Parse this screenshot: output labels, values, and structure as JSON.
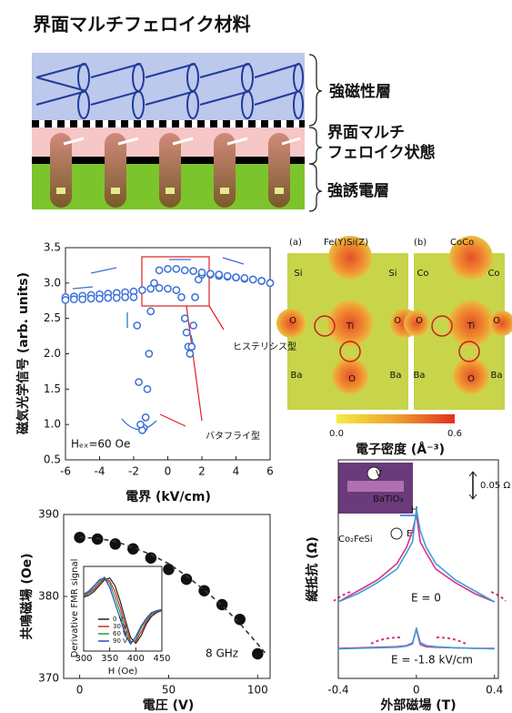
{
  "schematic": {
    "title": "界面マルチフェロイク材料",
    "labels": [
      "強磁性層",
      "界面マルチ",
      "フェロイク状態",
      "強誘電層"
    ]
  },
  "density_map": {
    "panels": [
      {
        "tag": "(a)",
        "title": "Fe(Y)Si(Z)",
        "atoms": [
          "Si",
          "Si",
          "O",
          "Ti",
          "O",
          "Ba",
          "O",
          "Ba"
        ]
      },
      {
        "tag": "(b)",
        "title": "CoCo",
        "atoms": [
          "Co",
          "Co",
          "O",
          "Ti",
          "O",
          "Ba",
          "O",
          "Ba"
        ]
      }
    ],
    "colorbar_ticks": [
      {
        "value": 0,
        "label": "0.0"
      },
      {
        "value": 0.6,
        "label": "0.6"
      }
    ],
    "colorbar_label": "電子密度 (Å⁻³)"
  },
  "chart_data": [
    {
      "type": "scatter",
      "x_label": "電界 (kV/cm)",
      "y_label": "磁気光学信号 (arb. units)",
      "xlim": [
        -6,
        6
      ],
      "xticks": [
        -6,
        -4,
        -2,
        0,
        2,
        4,
        6
      ],
      "ylim": [
        0.5,
        3.5
      ],
      "yticks": [
        0.5,
        {
          "value": 1,
          "label": "1.0"
        },
        1.5,
        {
          "value": 2,
          "label": "2.0"
        },
        2.5,
        {
          "value": 3,
          "label": "3.0"
        },
        3.5
      ],
      "annotations": [
        "ヒステリシス型",
        "バタフライ型",
        "Hₑₓ=60 Oe"
      ],
      "series": [
        {
          "color": "#3a6fd8",
          "filled": false,
          "x": [
            -6,
            -5.5,
            -5,
            -4.5,
            -4,
            -3.5,
            -3,
            -2.5,
            -2,
            -1.5,
            -1,
            -0.5,
            0,
            0.5,
            0.8,
            1,
            1.1,
            1.2,
            1.3,
            1.4,
            1.5,
            1.6,
            1.8,
            2,
            2.5,
            3,
            3.5,
            4,
            4.5,
            5,
            5.5,
            6
          ],
          "values": [
            2.8,
            2.81,
            2.82,
            2.83,
            2.84,
            2.85,
            2.86,
            2.87,
            2.88,
            2.9,
            2.92,
            2.93,
            2.92,
            2.9,
            2.8,
            2.5,
            2.3,
            2.1,
            2.0,
            2.1,
            2.4,
            2.8,
            3.05,
            3.12,
            3.12,
            3.1,
            3.09,
            3.08,
            3.06,
            3.05,
            3.03,
            3.0
          ]
        },
        {
          "color": "#3a6fd8",
          "filled": false,
          "x": [
            6,
            5.5,
            5,
            4.5,
            4,
            3.5,
            3,
            2.5,
            2,
            1.5,
            1,
            0.5,
            0,
            -0.5,
            -0.8,
            -1,
            -1.1,
            -1.2,
            -1.3,
            -1.4,
            -1.5,
            -1.6,
            -1.7,
            -1.8,
            -2,
            -2.5,
            -3,
            -3.5,
            -4,
            -4.5,
            -5,
            -5.5,
            -6
          ],
          "values": [
            3.0,
            3.03,
            3.05,
            3.07,
            3.08,
            3.1,
            3.12,
            3.13,
            3.15,
            3.17,
            3.18,
            3.2,
            3.2,
            3.18,
            3.0,
            2.6,
            2.0,
            1.5,
            1.1,
            0.95,
            0.92,
            1.0,
            1.6,
            2.4,
            2.8,
            2.8,
            2.79,
            2.79,
            2.78,
            2.78,
            2.77,
            2.77,
            2.76
          ]
        }
      ]
    },
    {
      "type": "scatter",
      "x_label": "電圧 (V)",
      "y_label": "共鳴磁場 (Oe)",
      "xlim": [
        -9,
        107
      ],
      "xticks": [
        0,
        50,
        100
      ],
      "ylim": [
        370,
        390
      ],
      "yticks": [
        370,
        380,
        390
      ],
      "annotations": [
        "8 GHz"
      ],
      "series": [
        {
          "color": "#111111",
          "filled": true,
          "x": [
            0,
            10,
            20,
            30,
            40,
            50,
            60,
            70,
            80,
            90,
            100
          ],
          "values": [
            387.2,
            387.0,
            386.4,
            385.8,
            384.7,
            383.3,
            382.1,
            380.7,
            379.0,
            377.2,
            373.0
          ]
        },
        {
          "color": "#333333",
          "type": "line",
          "dashed": true,
          "x": [
            0,
            10,
            20,
            30,
            40,
            50,
            60,
            70,
            80,
            90,
            100,
            105
          ],
          "values": [
            387.2,
            387.1,
            386.7,
            386.0,
            385.1,
            384.0,
            382.5,
            380.8,
            378.9,
            376.7,
            374.2,
            372.9
          ]
        }
      ]
    },
    {
      "type": "line",
      "x_label": "H (Oe)",
      "y_label": "Derivative FMR signal",
      "xlim": [
        300,
        450
      ],
      "xticks": [
        300,
        350,
        400,
        450
      ],
      "ylim": [
        -1.1,
        1.1
      ],
      "x": [
        300,
        310,
        320,
        330,
        340,
        350,
        360,
        370,
        380,
        390,
        400,
        410,
        420,
        430,
        440,
        450
      ],
      "series": [
        {
          "name": "0 V",
          "color": "#222222",
          "values": [
            0.3,
            0.35,
            0.45,
            0.6,
            0.75,
            0.8,
            0.6,
            0.2,
            -0.3,
            -0.75,
            -0.9,
            -0.7,
            -0.4,
            -0.2,
            -0.1,
            -0.05
          ]
        },
        {
          "name": "30 V",
          "color": "#d42a2a",
          "values": [
            0.32,
            0.4,
            0.5,
            0.65,
            0.8,
            0.72,
            0.45,
            0.05,
            -0.45,
            -0.85,
            -0.85,
            -0.6,
            -0.35,
            -0.15,
            -0.08,
            -0.04
          ]
        },
        {
          "name": "60 V",
          "color": "#2a9a3a",
          "values": [
            0.35,
            0.42,
            0.55,
            0.7,
            0.82,
            0.65,
            0.3,
            -0.1,
            -0.6,
            -0.9,
            -0.8,
            -0.5,
            -0.3,
            -0.12,
            -0.06,
            -0.03
          ]
        },
        {
          "name": "90 V",
          "color": "#2a4ad4",
          "values": [
            0.38,
            0.46,
            0.6,
            0.75,
            0.8,
            0.55,
            0.15,
            -0.25,
            -0.7,
            -0.92,
            -0.72,
            -0.45,
            -0.25,
            -0.1,
            -0.05,
            -0.02
          ]
        }
      ]
    },
    {
      "type": "line",
      "x_label": "外部磁場 (T)",
      "y_label": "縦抵抗 (Ω)",
      "xlim": [
        -0.4,
        0.42
      ],
      "xticks": [
        -0.4,
        0,
        0.4
      ],
      "ylim": [
        0,
        0.4
      ],
      "annotations": [
        "0.05 Ω",
        "E = 0",
        "E = -1.8 kV/cm",
        "V",
        "H",
        "BaTiO₃",
        "Co₂FeSi",
        "E"
      ],
      "x": [
        -0.4,
        -0.3,
        -0.2,
        -0.1,
        -0.05,
        -0.02,
        0,
        0.02,
        0.05,
        0.1,
        0.2,
        0.3,
        0.4
      ],
      "series": [
        {
          "color": "#d8308a",
          "values": [
            0.14,
            0.16,
            0.18,
            0.21,
            0.24,
            0.27,
            0.3,
            0.25,
            0.23,
            0.2,
            0.175,
            0.155,
            0.14
          ]
        },
        {
          "color": "#3aa0d8",
          "values": [
            0.14,
            0.155,
            0.175,
            0.2,
            0.23,
            0.25,
            0.31,
            0.27,
            0.24,
            0.21,
            0.18,
            0.16,
            0.14
          ]
        },
        {
          "color": "#d8308a",
          "values": [
            0.055,
            0.056,
            0.057,
            0.058,
            0.06,
            0.065,
            0.09,
            0.062,
            0.058,
            0.057,
            0.056,
            0.055,
            0.055
          ]
        },
        {
          "color": "#3aa0d8",
          "values": [
            0.054,
            0.055,
            0.056,
            0.057,
            0.059,
            0.063,
            0.092,
            0.066,
            0.06,
            0.058,
            0.056,
            0.055,
            0.054
          ]
        }
      ]
    }
  ]
}
